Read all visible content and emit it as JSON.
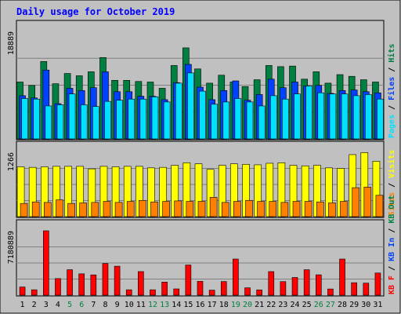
{
  "chart_data": {
    "type": "bar",
    "title": "Daily usage for October 2019",
    "categories": [
      "1",
      "2",
      "3",
      "4",
      "5",
      "6",
      "7",
      "8",
      "9",
      "10",
      "11",
      "12",
      "13",
      "14",
      "15",
      "16",
      "17",
      "18",
      "19",
      "20",
      "21",
      "22",
      "23",
      "24",
      "25",
      "26",
      "27",
      "28",
      "29",
      "30",
      "31"
    ],
    "weekend_categories": [
      "5",
      "6",
      "12",
      "13",
      "19",
      "20",
      "26",
      "27"
    ],
    "panels": [
      {
        "name": "hits-files-pages",
        "ymax_label": "18889",
        "ymax": 18889,
        "series": [
          {
            "name": "Hits",
            "color": "#008040",
            "values": [
              10000,
              9400,
              13600,
              9700,
              11500,
              11100,
              11800,
              14300,
              10300,
              10300,
              10100,
              10000,
              8900,
              12900,
              16000,
              12300,
              9800,
              11200,
              10000,
              9200,
              10400,
              12900,
              12700,
              12800,
              10500,
              11800,
              9800,
              11300,
              11000,
              10400,
              10000
            ]
          },
          {
            "name": "Files",
            "color": "#0040ff",
            "values": [
              7600,
              7200,
              12100,
              6200,
              8900,
              8500,
              9000,
              11800,
              8300,
              8300,
              7500,
              7500,
              6900,
              9900,
              13100,
              9100,
              6900,
              8500,
              10200,
              6800,
              7800,
              10500,
              9000,
              10000,
              9300,
              9400,
              8000,
              8500,
              8600,
              8300,
              8100
            ]
          },
          {
            "name": "Pages",
            "color": "#00e0ff",
            "values": [
              7100,
              7000,
              5800,
              6000,
              7900,
              6000,
              5700,
              6600,
              6800,
              7000,
              7000,
              7400,
              6500,
              9800,
              11600,
              8400,
              6100,
              6500,
              7100,
              6500,
              5800,
              7600,
              7000,
              7900,
              9300,
              8100,
              7900,
              7900,
              7600,
              7800,
              7000
            ]
          }
        ]
      },
      {
        "name": "visits-sites",
        "ymax_label": "1266",
        "ymax": 1266,
        "series": [
          {
            "name": "Visits",
            "color": "#ffff00",
            "values": [
              980,
              970,
              980,
              990,
              990,
              990,
              940,
              990,
              980,
              990,
              990,
              960,
              970,
              1010,
              1060,
              1040,
              930,
              1010,
              1040,
              1030,
              1020,
              1050,
              1060,
              1010,
              1000,
              1010,
              960,
              950,
              1220,
              1260,
              1090
            ]
          },
          {
            "name": "Sites",
            "color": "#ff8000",
            "values": [
              260,
              290,
              280,
              330,
              260,
              270,
              280,
              300,
              280,
              300,
              320,
              290,
              300,
              310,
              300,
              300,
              380,
              280,
              300,
              320,
              300,
              300,
              280,
              300,
              300,
              290,
              270,
              300,
              570,
              580,
              420
            ]
          }
        ]
      },
      {
        "name": "kbf-kbin-kbout",
        "ymax_label": "7180889",
        "ymax": 7180889,
        "series": [
          {
            "name": "KB F",
            "color": "#ff0000",
            "values": [
              910000,
              600000,
              7180000,
              1850000,
              2840000,
              2380000,
              2260000,
              3530000,
              3230000,
              600000,
              2630000,
              600000,
              1460000,
              700000,
              3360000,
              1540000,
              560000,
              1520000,
              4030000,
              820000,
              590000,
              2630000,
              1510000,
              1970000,
              2840000,
              2270000,
              690000,
              4030000,
              1390000,
              1340000,
              2470000
            ]
          }
        ]
      }
    ],
    "right_legend_panel1": [
      {
        "text": "Pages",
        "color": "#00e0ff"
      },
      {
        "text": " / ",
        "color": "#000000"
      },
      {
        "text": "Files",
        "color": "#0040ff"
      },
      {
        "text": " / ",
        "color": "#000000"
      },
      {
        "text": "Hits",
        "color": "#008040"
      }
    ],
    "right_legend_panel2": [
      {
        "text": "Sites",
        "color": "#ff8000"
      },
      {
        "text": " / ",
        "color": "#000000"
      },
      {
        "text": "Visits",
        "color": "#ffff00"
      }
    ],
    "right_legend_panel3": [
      {
        "text": "KB F",
        "color": "#ff0000"
      },
      {
        "text": " / ",
        "color": "#000000"
      },
      {
        "text": "KB In",
        "color": "#0040ff"
      },
      {
        "text": " / ",
        "color": "#000000"
      },
      {
        "text": "KB Out",
        "color": "#008040"
      }
    ],
    "colors": {
      "title": "#0000ff",
      "plot_bg": "#c0c0c0",
      "frame_bg": "#c0c0c0",
      "weekday_tick": "#000000",
      "weekend_tick": "#008040"
    }
  }
}
